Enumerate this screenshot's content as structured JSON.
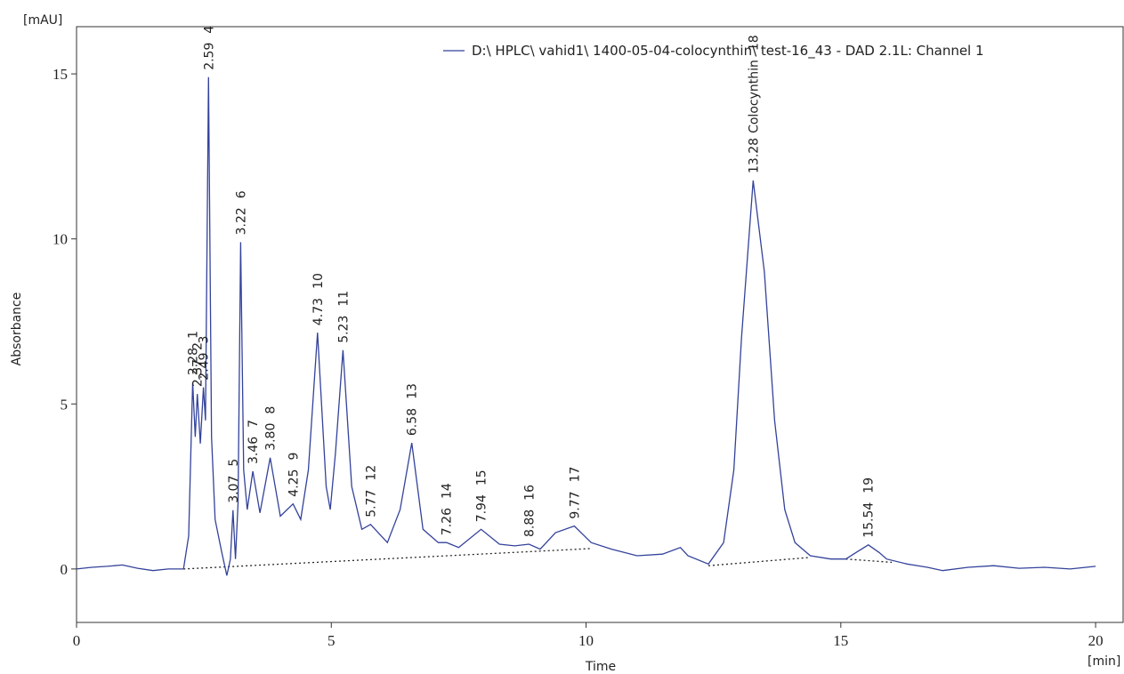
{
  "chart_data": {
    "type": "line",
    "y_unit": "[mAU]",
    "x_unit": "[min]",
    "x_label": "Time",
    "y_label": "Absorbance",
    "xlim": [
      0,
      20.54
    ],
    "ylim": [
      -1.62,
      16.43
    ],
    "xticks": [
      0,
      5,
      10,
      15,
      20
    ],
    "yticks": [
      0,
      5,
      10,
      15
    ],
    "legend": "top-right",
    "series": [
      {
        "name": "D:\\ HPLC\\ vahid1\\ 1400-05-04-colocynthin\\ test-16_43 - DAD 2.1L: Channel 1",
        "color": "#33429a",
        "x": [
          0,
          0.3,
          0.6,
          0.9,
          1.2,
          1.5,
          1.8,
          2.1,
          2.2,
          2.28,
          2.33,
          2.37,
          2.43,
          2.49,
          2.53,
          2.59,
          2.65,
          2.72,
          2.85,
          2.95,
          3.02,
          3.07,
          3.12,
          3.17,
          3.22,
          3.28,
          3.35,
          3.46,
          3.6,
          3.8,
          4.0,
          4.25,
          4.4,
          4.55,
          4.73,
          4.9,
          4.98,
          5.08,
          5.23,
          5.4,
          5.6,
          5.77,
          6.1,
          6.35,
          6.58,
          6.8,
          7.1,
          7.26,
          7.5,
          7.94,
          8.3,
          8.6,
          8.88,
          9.1,
          9.4,
          9.77,
          10.1,
          10.5,
          11.0,
          11.5,
          11.85,
          12.0,
          12.4,
          12.7,
          12.9,
          13.05,
          13.28,
          13.5,
          13.7,
          13.9,
          14.1,
          14.4,
          14.8,
          15.1,
          15.3,
          15.54,
          15.75,
          15.9,
          16.3,
          16.7,
          17.0,
          17.5,
          18.0,
          18.5,
          19.0,
          19.5,
          20.0
        ],
        "values": [
          0.0,
          0.05,
          0.08,
          0.12,
          0.02,
          -0.05,
          0.0,
          0.0,
          1.0,
          5.65,
          4.0,
          5.3,
          3.8,
          5.5,
          4.5,
          14.9,
          4.0,
          1.5,
          0.5,
          -0.2,
          0.3,
          1.78,
          0.3,
          2.0,
          9.9,
          3.0,
          1.8,
          2.96,
          1.7,
          3.37,
          1.6,
          1.97,
          1.5,
          3.0,
          7.16,
          2.5,
          1.8,
          3.5,
          6.63,
          2.5,
          1.2,
          1.35,
          0.8,
          1.8,
          3.82,
          1.2,
          0.8,
          0.8,
          0.65,
          1.2,
          0.75,
          0.7,
          0.75,
          0.6,
          1.1,
          1.3,
          0.8,
          0.6,
          0.4,
          0.45,
          0.65,
          0.4,
          0.15,
          0.8,
          3.0,
          7.0,
          11.77,
          9.0,
          4.5,
          1.8,
          0.8,
          0.4,
          0.3,
          0.3,
          0.5,
          0.73,
          0.5,
          0.3,
          0.15,
          0.05,
          -0.05,
          0.05,
          0.1,
          0.02,
          0.05,
          0.0,
          0.08
        ]
      }
    ],
    "integration_baseline": [
      {
        "x": [
          2.1,
          10.1
        ],
        "values": [
          0.0,
          0.62
        ]
      },
      {
        "x": [
          12.4,
          14.4
        ],
        "values": [
          0.1,
          0.35
        ]
      },
      {
        "x": [
          15.1,
          16.0
        ],
        "values": [
          0.3,
          0.2
        ]
      }
    ],
    "peaks": [
      {
        "rt": 2.28,
        "id": 1
      },
      {
        "rt": 2.37,
        "id": 2
      },
      {
        "rt": 2.49,
        "id": 3
      },
      {
        "rt": 2.59,
        "id": 4
      },
      {
        "rt": 3.07,
        "id": 5
      },
      {
        "rt": 3.22,
        "id": 6
      },
      {
        "rt": 3.46,
        "id": 7
      },
      {
        "rt": 3.8,
        "rt_label": "3.80",
        "id": 8
      },
      {
        "rt": 4.25,
        "id": 9
      },
      {
        "rt": 4.73,
        "id": 10
      },
      {
        "rt": 5.23,
        "id": 11
      },
      {
        "rt": 5.77,
        "id": 12
      },
      {
        "rt": 6.58,
        "id": 13
      },
      {
        "rt": 7.26,
        "id": 14
      },
      {
        "rt": 7.94,
        "id": 15
      },
      {
        "rt": 8.88,
        "id": 16
      },
      {
        "rt": 9.77,
        "id": 17
      },
      {
        "rt": 13.28,
        "name": "Colocynthin",
        "id": 18
      },
      {
        "rt": 15.54,
        "id": 19
      }
    ]
  }
}
